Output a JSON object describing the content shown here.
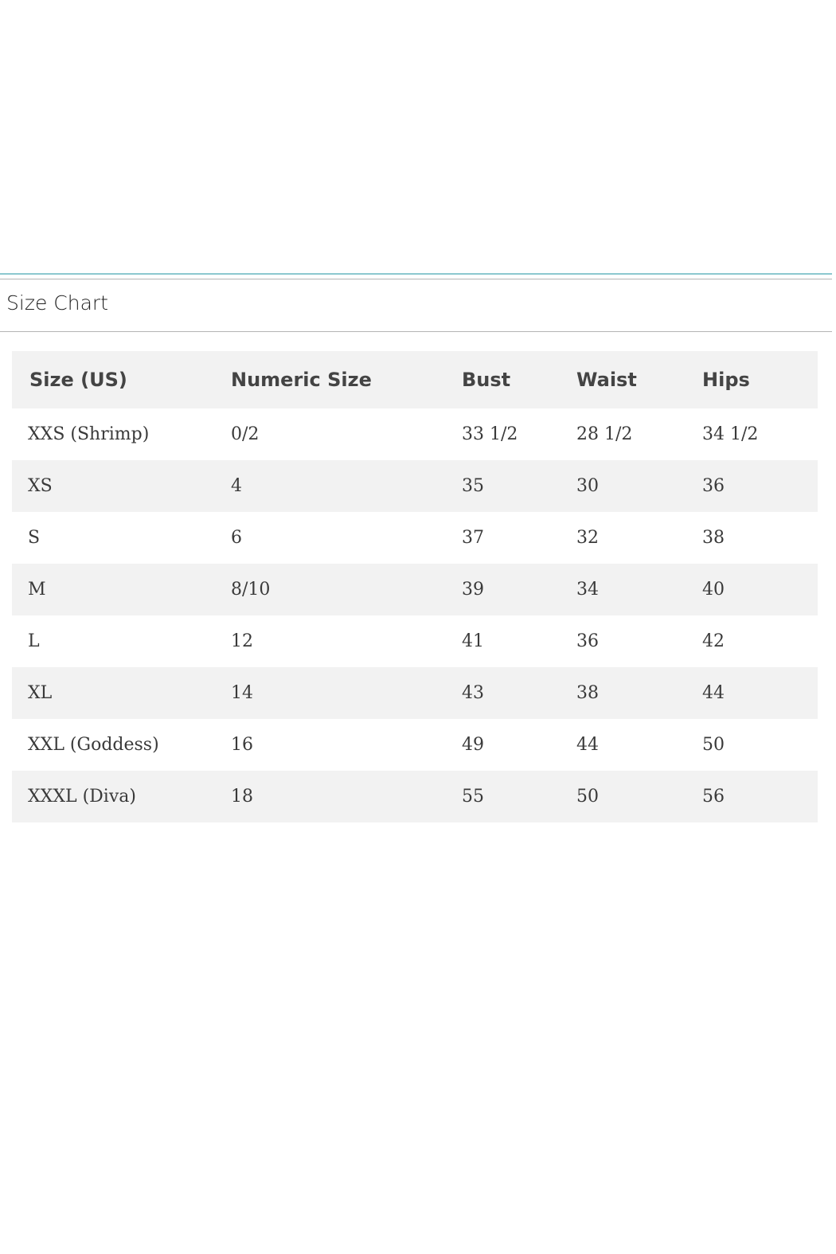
{
  "title": "Size Chart",
  "headers": [
    "Size (US)",
    "Numeric Size",
    "Bust",
    "Waist",
    "Hips"
  ],
  "rows": [
    [
      "XXS (Shrimp)",
      "0/2",
      "33 1/2",
      "28 1/2",
      "34 1/2"
    ],
    [
      "XS",
      "4",
      "35",
      "30",
      "36"
    ],
    [
      "S",
      "6",
      "37",
      "32",
      "38"
    ],
    [
      "M",
      "8/10",
      "39",
      "34",
      "40"
    ],
    [
      "L",
      "12",
      "41",
      "36",
      "42"
    ],
    [
      "XL",
      "14",
      "43",
      "38",
      "44"
    ],
    [
      "XXL (Goddess)",
      "16",
      "49",
      "44",
      "50"
    ],
    [
      "XXXL (Diva)",
      "18",
      "55",
      "50",
      "56"
    ]
  ]
}
